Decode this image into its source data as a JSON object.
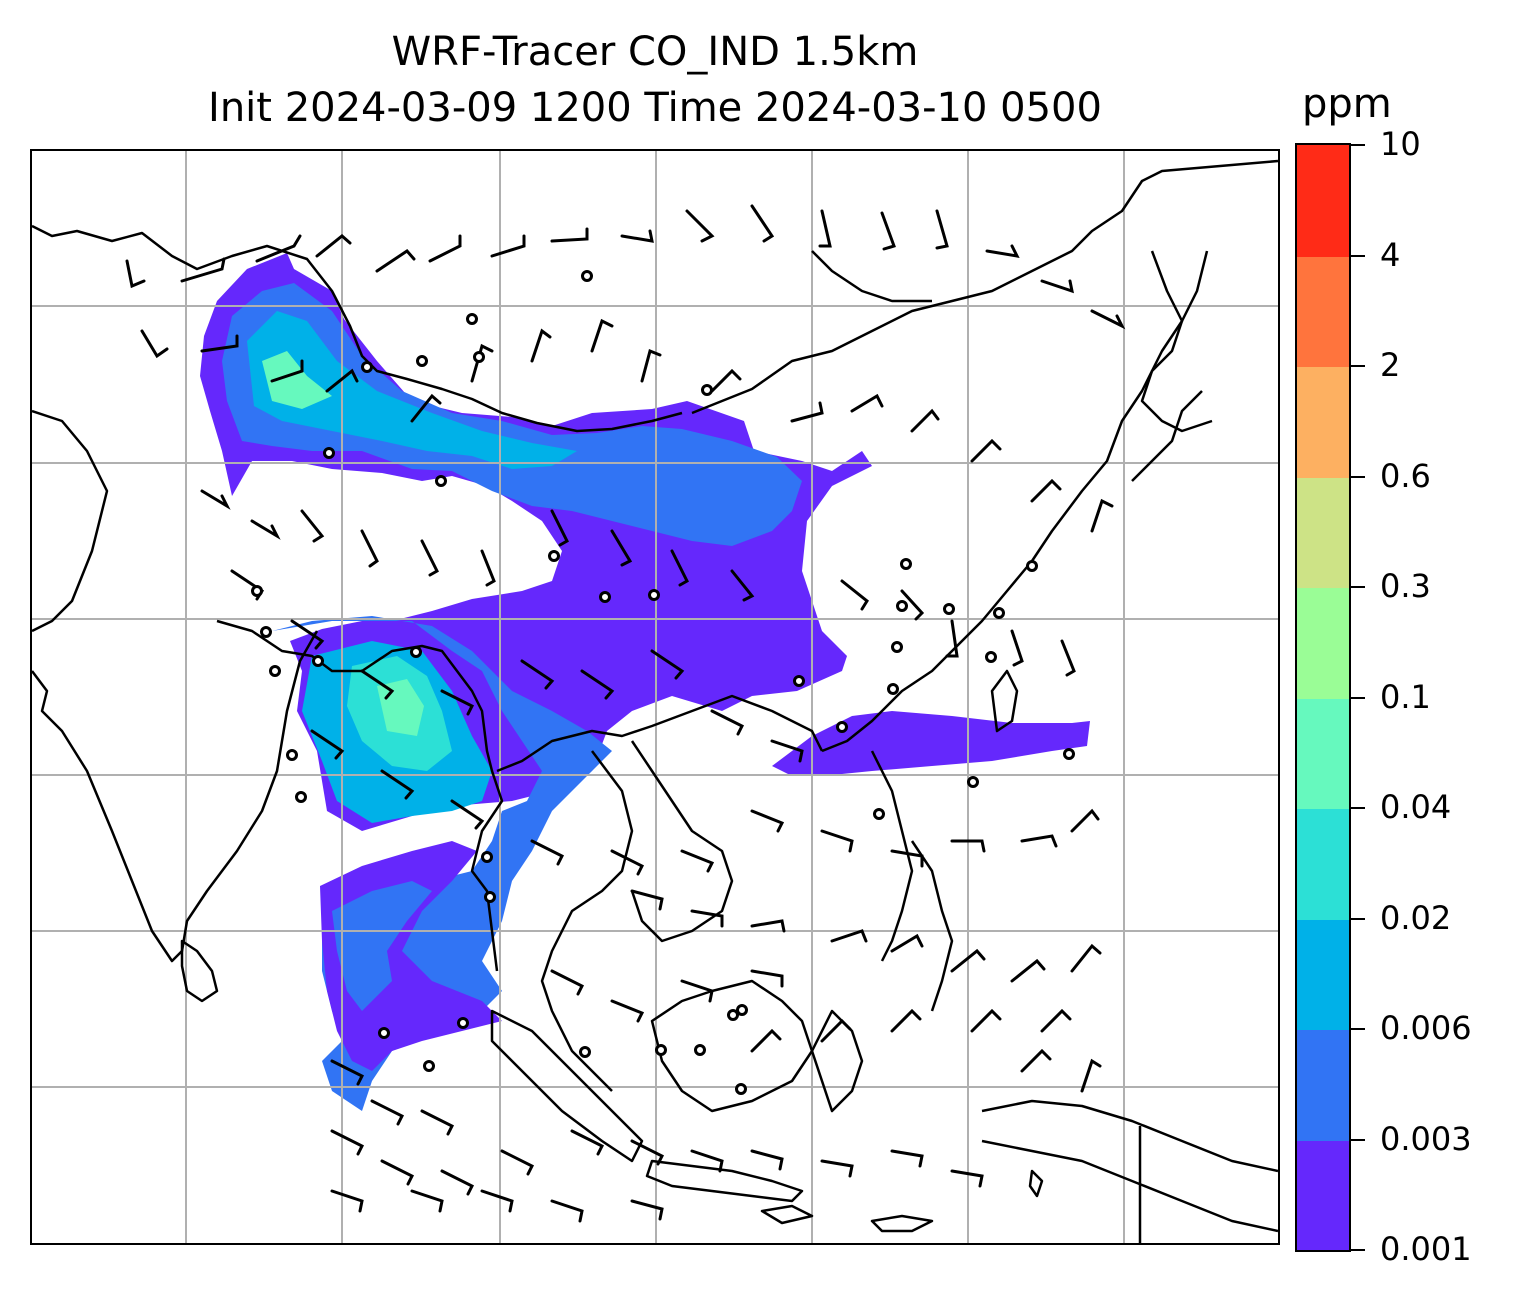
{
  "title": {
    "line1": "WRF-Tracer CO_IND 1.5km",
    "line2": "Init 2024-03-09 1200 Time 2024-03-10 0500"
  },
  "colorbar": {
    "unit": "ppm",
    "ticks": [
      "0.001",
      "0.003",
      "0.006",
      "0.02",
      "0.04",
      "0.1",
      "0.3",
      "0.6",
      "2",
      "4",
      "10"
    ],
    "colors": [
      "#6528fc",
      "#3174f4",
      "#00b1e8",
      "#2ce0d6",
      "#66f9be",
      "#9afd96",
      "#cde386",
      "#fdb061",
      "#ff743d",
      "#ff2b17"
    ]
  },
  "map": {
    "coastline_color": "#000000",
    "gridline_color": "#b0b0b0",
    "wind_barb_color": "#000000",
    "gridlines": "on"
  }
}
